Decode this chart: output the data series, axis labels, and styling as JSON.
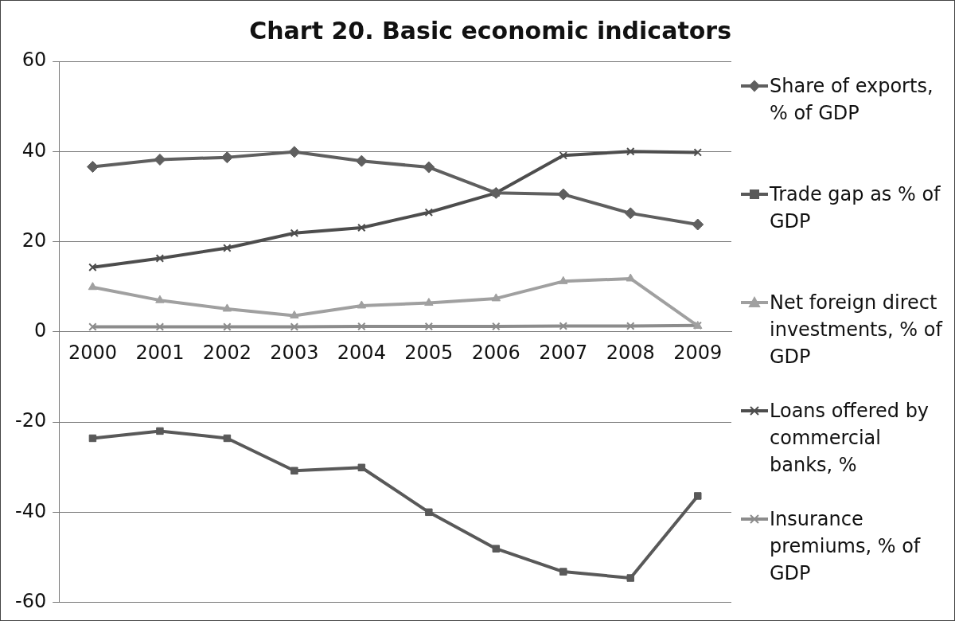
{
  "chart_data": {
    "type": "line",
    "title": "Chart 20. Basic economic indicators",
    "categories": [
      "2000",
      "2001",
      "2002",
      "2003",
      "2004",
      "2005",
      "2006",
      "2007",
      "2008",
      "2009"
    ],
    "series": [
      {
        "name": "Share of exports, % of GDP",
        "color": "#5f5f5f",
        "marker": "diamond",
        "values": [
          36.6,
          38.2,
          38.7,
          39.9,
          37.9,
          36.5,
          30.8,
          30.5,
          26.3,
          23.8
        ]
      },
      {
        "name": "Trade gap as % of GDP",
        "color": "#595959",
        "marker": "square",
        "values": [
          -23.6,
          -22.0,
          -23.6,
          -30.8,
          -30.1,
          -40.0,
          -48.1,
          -53.2,
          -54.6,
          -36.4
        ]
      },
      {
        "name": "Net foreign direct investments, % of GDP",
        "color": "#a0a0a0",
        "marker": "triangle",
        "values": [
          9.9,
          7.0,
          5.1,
          3.6,
          5.8,
          6.4,
          7.4,
          11.2,
          11.8,
          1.3
        ]
      },
      {
        "name": "Loans offered by commercial banks, %",
        "color": "#4d4d4d",
        "marker": "cross",
        "values": [
          14.3,
          16.3,
          18.6,
          21.9,
          23.1,
          26.5,
          30.8,
          39.1,
          40.0,
          39.8
        ]
      },
      {
        "name": "Insurance premiums, % of GDP",
        "color": "#8c8c8c",
        "marker": "cross",
        "values": [
          1.1,
          1.1,
          1.1,
          1.1,
          1.2,
          1.2,
          1.2,
          1.3,
          1.3,
          1.4
        ]
      }
    ],
    "ylim": [
      -60,
      60
    ],
    "yticks": [
      -60,
      -40,
      -20,
      0,
      20,
      40,
      60
    ],
    "grid": "y",
    "legend": "right"
  }
}
